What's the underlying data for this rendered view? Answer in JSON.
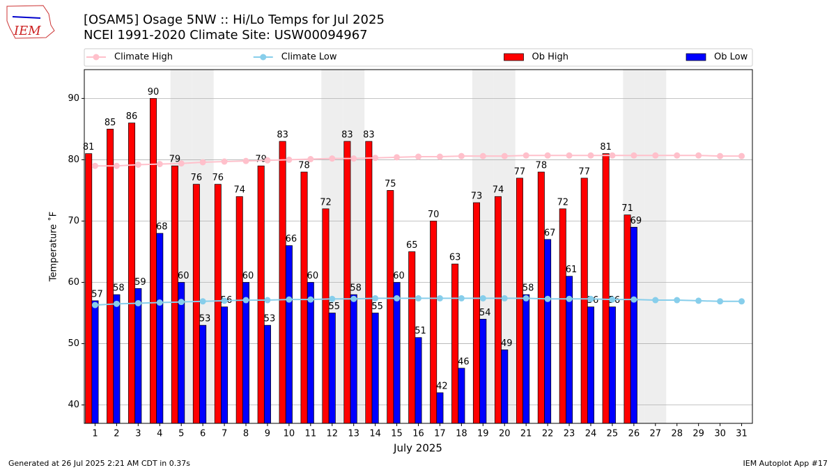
{
  "logo": "IEM",
  "footer": {
    "left": "Generated at 26 Jul 2025 2:21 AM CDT in 0.37s",
    "right": "IEM Autoplot App #17"
  },
  "chart_data": {
    "type": "bar",
    "title": "[OSAM5] Osage 5NW :: Hi/Lo Temps for Jul 2025",
    "subtitle": "NCEI 1991-2020 Climate Site: USW00094967",
    "xlabel": "July 2025",
    "ylabel": "Temperature ˚F",
    "x": [
      1,
      2,
      3,
      4,
      5,
      6,
      7,
      8,
      9,
      10,
      11,
      12,
      13,
      14,
      15,
      16,
      17,
      18,
      19,
      20,
      21,
      22,
      23,
      24,
      25,
      26,
      27,
      28,
      29,
      30,
      31
    ],
    "xlim": [
      0.5,
      31.5
    ],
    "xticks": [
      1,
      2,
      3,
      4,
      5,
      6,
      7,
      8,
      9,
      10,
      11,
      12,
      13,
      14,
      15,
      16,
      17,
      18,
      19,
      20,
      21,
      22,
      23,
      24,
      25,
      26,
      27,
      28,
      29,
      30,
      31
    ],
    "ylim": [
      37,
      94.7
    ],
    "yticks": [
      40,
      50,
      60,
      70,
      80,
      90
    ],
    "grid": true,
    "legend": "top",
    "shaded_days": [
      5,
      6,
      12,
      13,
      19,
      20,
      26,
      27
    ],
    "shade_color": "#eeeeee",
    "series": [
      {
        "name": "Climate High",
        "kind": "line",
        "color": "#ffc0cb",
        "values": [
          79.0,
          79.0,
          79.2,
          79.3,
          79.4,
          79.6,
          79.7,
          79.8,
          79.9,
          80.0,
          80.1,
          80.2,
          80.2,
          80.3,
          80.4,
          80.5,
          80.5,
          80.6,
          80.6,
          80.6,
          80.7,
          80.7,
          80.7,
          80.7,
          80.7,
          80.7,
          80.7,
          80.7,
          80.7,
          80.6,
          80.6
        ]
      },
      {
        "name": "Climate Low",
        "kind": "line",
        "color": "#87ceeb",
        "values": [
          56.3,
          56.5,
          56.6,
          56.7,
          56.8,
          56.9,
          57.0,
          57.1,
          57.1,
          57.2,
          57.2,
          57.3,
          57.3,
          57.4,
          57.4,
          57.4,
          57.4,
          57.4,
          57.4,
          57.4,
          57.4,
          57.3,
          57.3,
          57.3,
          57.2,
          57.2,
          57.1,
          57.1,
          57.0,
          56.9,
          56.9
        ]
      },
      {
        "name": "Ob High",
        "kind": "bar",
        "color": "#ff0000",
        "values": [
          81,
          85,
          86,
          90,
          79,
          76,
          76,
          74,
          79,
          83,
          78,
          72,
          83,
          83,
          75,
          65,
          70,
          63,
          73,
          74,
          77,
          78,
          72,
          77,
          81,
          71,
          null,
          null,
          null,
          null,
          null
        ]
      },
      {
        "name": "Ob Low",
        "kind": "bar",
        "color": "#0000ff",
        "values": [
          57,
          58,
          59,
          68,
          60,
          53,
          56,
          60,
          53,
          66,
          60,
          55,
          58,
          55,
          60,
          51,
          42,
          46,
          54,
          49,
          58,
          67,
          61,
          56,
          56,
          69,
          null,
          null,
          null,
          null,
          null
        ]
      }
    ]
  }
}
